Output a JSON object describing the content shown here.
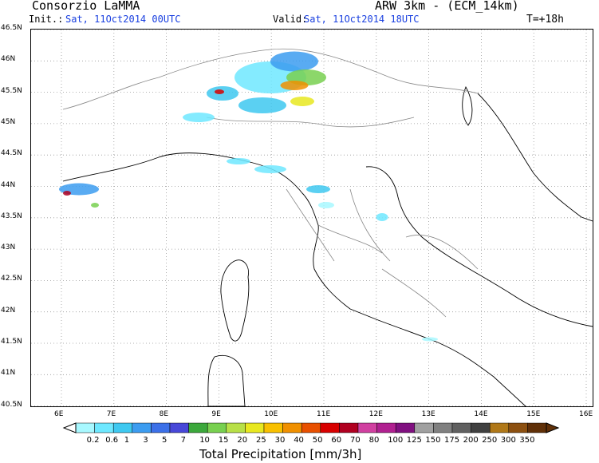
{
  "header": {
    "org": "Consorzio LaMMA",
    "model": "ARW 3km - (ECM_14km)",
    "init_label": "Init.:",
    "init_value": "Sat, 11Oct2014 00UTC",
    "valid_label": "Valid:",
    "valid_value": "Sat, 11Oct2014 18UTC",
    "lead": "T=+18h"
  },
  "axes": {
    "lat_labels": [
      "46.5N",
      "46N",
      "45.5N",
      "45N",
      "44.5N",
      "44N",
      "43.5N",
      "43N",
      "42.5N",
      "42N",
      "41.5N",
      "41N",
      "40.5N"
    ],
    "lon_labels": [
      "6E",
      "7E",
      "8E",
      "9E",
      "10E",
      "11E",
      "12E",
      "13E",
      "14E",
      "15E",
      "16E"
    ]
  },
  "colorbar": {
    "title": "Total Precipitation [mm/3h]",
    "levels": [
      "0.2",
      "0.6",
      "1",
      "3",
      "5",
      "7",
      "10",
      "15",
      "20",
      "25",
      "30",
      "40",
      "50",
      "60",
      "70",
      "80",
      "100",
      "125",
      "150",
      "175",
      "200",
      "250",
      "300",
      "350"
    ],
    "colors": [
      "#a8f8ff",
      "#6ee8ff",
      "#3ec8f0",
      "#3c9cf0",
      "#3c70e8",
      "#4848d8",
      "#3ca83c",
      "#78d050",
      "#b8e048",
      "#e8e820",
      "#f8c000",
      "#f09000",
      "#e85000",
      "#d80000",
      "#b00020",
      "#d040a0",
      "#b02090",
      "#801080",
      "#a0a0a0",
      "#808080",
      "#606060",
      "#404040",
      "#b07818",
      "#8c5010",
      "#603008"
    ]
  },
  "legend_icons": [
    "map-icon"
  ]
}
